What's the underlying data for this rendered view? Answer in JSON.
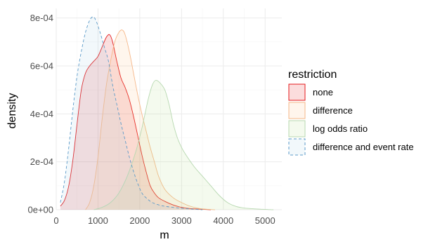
{
  "chart_data": {
    "type": "area",
    "xlabel": "m",
    "ylabel": "density",
    "xlim": [
      0,
      5400
    ],
    "ylim": [
      0,
      0.00084
    ],
    "x_ticks": [
      0,
      1000,
      2000,
      3000,
      4000,
      5000
    ],
    "x_tick_labels": [
      "0",
      "1000",
      "2000",
      "3000",
      "4000",
      "5000"
    ],
    "y_ticks": [
      0,
      0.0002,
      0.0004,
      0.0006,
      0.0008
    ],
    "y_tick_labels": [
      "0e+00",
      "2e-04",
      "4e-04",
      "6e-04",
      "8e-04"
    ],
    "grid": true,
    "legend": {
      "title": "restriction",
      "position": "right"
    },
    "series": [
      {
        "name": "none",
        "fill": "#e41a1c",
        "stroke": "#e41a1c",
        "dash": "none",
        "points": [
          [
            100,
            1.5e-05
          ],
          [
            200,
            4e-05
          ],
          [
            300,
            0.0001
          ],
          [
            400,
            0.00021
          ],
          [
            500,
            0.00036
          ],
          [
            600,
            0.0005
          ],
          [
            700,
            0.00057
          ],
          [
            800,
            0.0006
          ],
          [
            900,
            0.00062
          ],
          [
            1000,
            0.00064
          ],
          [
            1100,
            0.00068
          ],
          [
            1200,
            0.00072
          ],
          [
            1280,
            0.00073
          ],
          [
            1350,
            0.0007
          ],
          [
            1450,
            0.00062
          ],
          [
            1550,
            0.00055
          ],
          [
            1650,
            0.00051
          ],
          [
            1750,
            0.00046
          ],
          [
            1850,
            0.00039
          ],
          [
            1950,
            0.00031
          ],
          [
            2050,
            0.00023
          ],
          [
            2150,
            0.00016
          ],
          [
            2250,
            0.0001
          ],
          [
            2350,
            7e-05
          ],
          [
            2450,
            5e-05
          ],
          [
            2600,
            3.5e-05
          ],
          [
            2800,
            2e-05
          ],
          [
            3000,
            1e-05
          ],
          [
            3200,
            5e-06
          ],
          [
            3500,
            2e-06
          ],
          [
            3700,
            0
          ]
        ]
      },
      {
        "name": "difference",
        "fill": "#ffbe7d",
        "stroke": "#f6b88a",
        "dash": "none",
        "points": [
          [
            700,
            0
          ],
          [
            800,
            3e-05
          ],
          [
            900,
            0.0001
          ],
          [
            1000,
            0.00022
          ],
          [
            1100,
            0.00038
          ],
          [
            1200,
            0.00052
          ],
          [
            1300,
            0.00062
          ],
          [
            1400,
            0.0007
          ],
          [
            1500,
            0.00074
          ],
          [
            1580,
            0.00075
          ],
          [
            1650,
            0.00073
          ],
          [
            1750,
            0.00066
          ],
          [
            1850,
            0.00057
          ],
          [
            1950,
            0.00048
          ],
          [
            2050,
            0.0004
          ],
          [
            2150,
            0.00033
          ],
          [
            2250,
            0.00026
          ],
          [
            2350,
            0.0002
          ],
          [
            2450,
            0.00014
          ],
          [
            2600,
            8.5e-05
          ],
          [
            2800,
            5e-05
          ],
          [
            3000,
            3e-05
          ],
          [
            3200,
            1.5e-05
          ],
          [
            3400,
            6e-06
          ],
          [
            3600,
            2e-06
          ],
          [
            3800,
            0
          ]
        ]
      },
      {
        "name": "log odds ratio",
        "fill": "#b2df8a",
        "stroke": "#b7d8b0",
        "dash": "none",
        "points": [
          [
            900,
            0
          ],
          [
            1100,
            1e-05
          ],
          [
            1300,
            3e-05
          ],
          [
            1500,
            7e-05
          ],
          [
            1700,
            0.00014
          ],
          [
            1900,
            0.00024
          ],
          [
            2050,
            0.00034
          ],
          [
            2200,
            0.00046
          ],
          [
            2300,
            0.00052
          ],
          [
            2380,
            0.00054
          ],
          [
            2480,
            0.00053
          ],
          [
            2600,
            0.0005
          ],
          [
            2700,
            0.00044
          ],
          [
            2800,
            0.00036
          ],
          [
            2900,
            0.0003
          ],
          [
            3000,
            0.00026
          ],
          [
            3100,
            0.00023
          ],
          [
            3300,
            0.00018
          ],
          [
            3500,
            0.00014
          ],
          [
            3700,
            0.0001
          ],
          [
            3900,
            6e-05
          ],
          [
            4100,
            3e-05
          ],
          [
            4300,
            1.4e-05
          ],
          [
            4500,
            7e-06
          ],
          [
            4800,
            3e-06
          ],
          [
            5200,
            0
          ]
        ]
      },
      {
        "name": "difference and event rate",
        "fill": "#a6cee3",
        "stroke": "#5b9ac9",
        "dash": "4,3",
        "points": [
          [
            100,
            3e-05
          ],
          [
            200,
            0.00012
          ],
          [
            300,
            0.00026
          ],
          [
            400,
            0.00042
          ],
          [
            500,
            0.00056
          ],
          [
            600,
            0.00066
          ],
          [
            700,
            0.00074
          ],
          [
            800,
            0.00079
          ],
          [
            880,
            0.000805
          ],
          [
            950,
            0.00079
          ],
          [
            1050,
            0.00074
          ],
          [
            1150,
            0.00068
          ],
          [
            1250,
            0.00062
          ],
          [
            1350,
            0.00052
          ],
          [
            1450,
            0.00044
          ],
          [
            1550,
            0.00036
          ],
          [
            1650,
            0.00029
          ],
          [
            1750,
            0.00022
          ],
          [
            1850,
            0.00016
          ],
          [
            1950,
            0.00011
          ],
          [
            2050,
            7e-05
          ],
          [
            2150,
            5e-05
          ],
          [
            2300,
            3e-05
          ],
          [
            2500,
            1.8e-05
          ],
          [
            2700,
            1.2e-05
          ],
          [
            2900,
            8e-06
          ],
          [
            3100,
            5e-06
          ],
          [
            3300,
            2e-06
          ],
          [
            3500,
            0
          ]
        ]
      }
    ]
  }
}
